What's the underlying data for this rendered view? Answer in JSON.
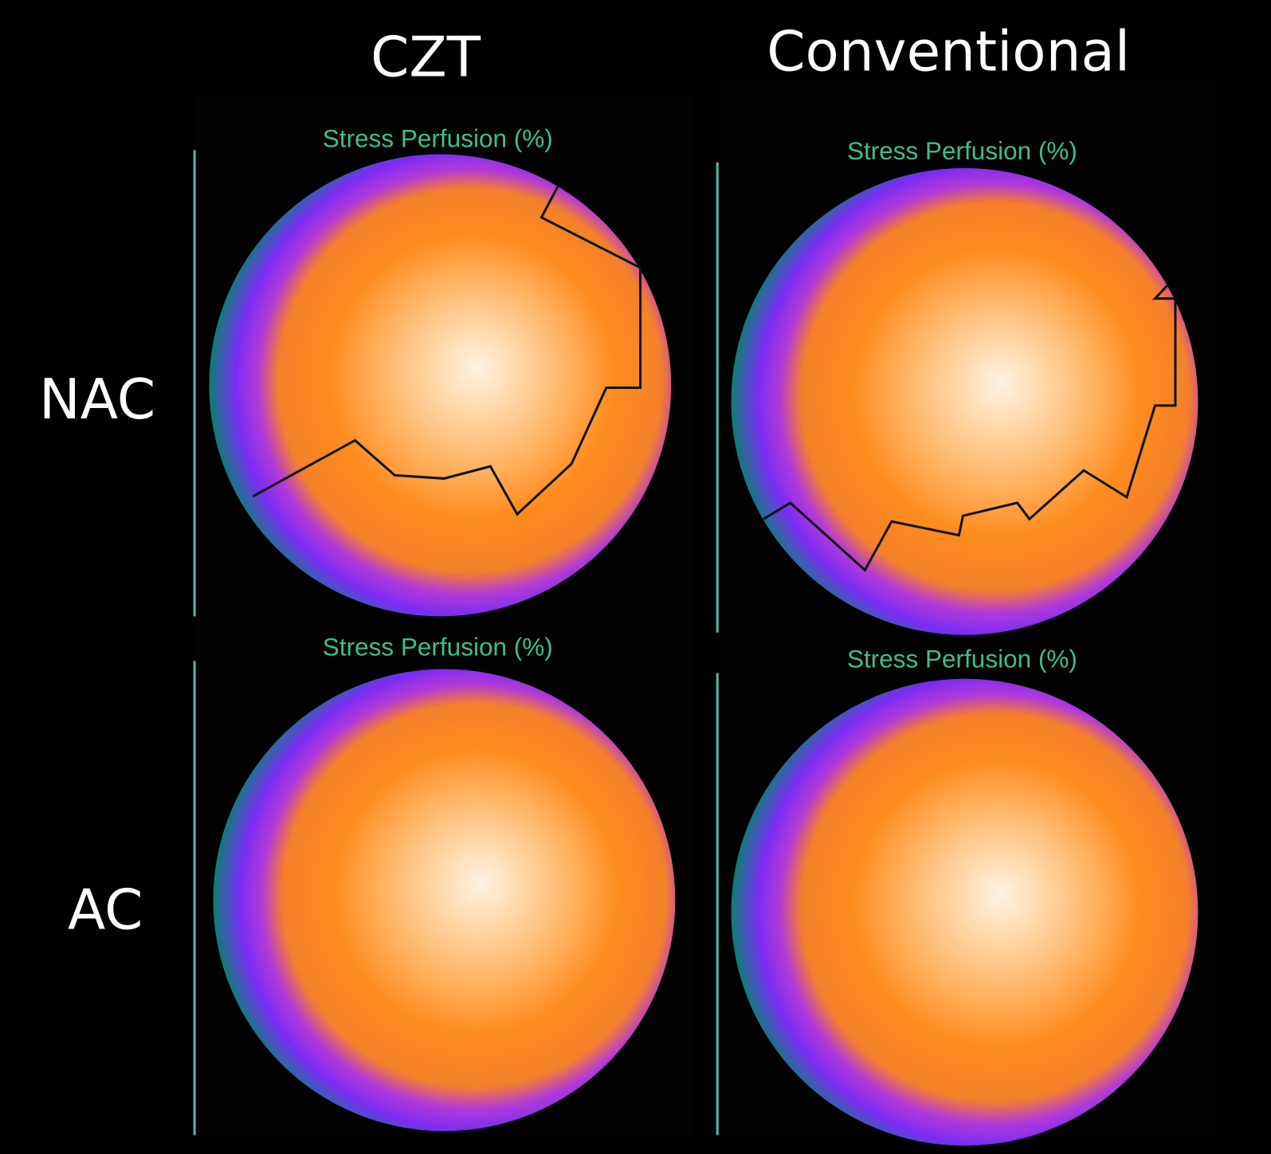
{
  "column_headers": [
    "CZT",
    "Conventional"
  ],
  "row_labels": [
    "NAC",
    "AC"
  ],
  "panels": [
    {
      "title": "Stress Perfusion (%)"
    },
    {
      "title": "Stress Perfusion (%)"
    },
    {
      "title": "Stress Perfusion (%)"
    },
    {
      "title": "Stress Perfusion (%)"
    }
  ]
}
